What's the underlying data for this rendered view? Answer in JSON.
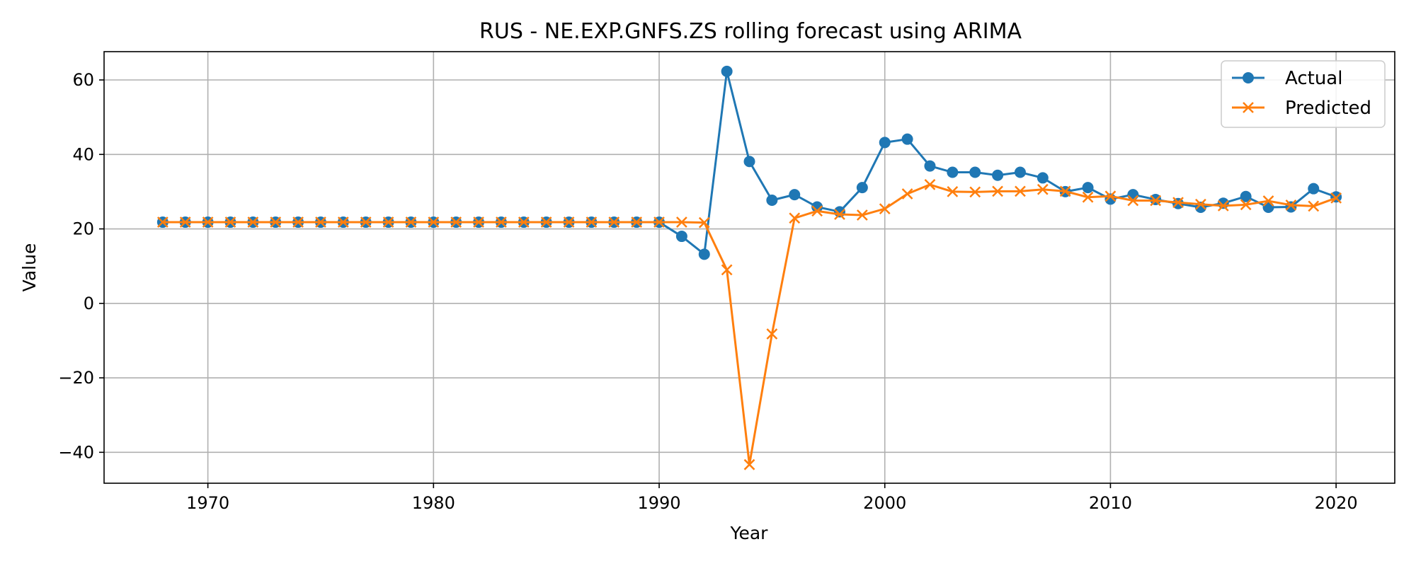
{
  "chart_data": {
    "type": "line",
    "title": "RUS - NE.EXP.GNFS.ZS rolling forecast using ARIMA",
    "xlabel": "Year",
    "ylabel": "Value",
    "xlim": [
      1965.4,
      2022.6
    ],
    "ylim": [
      -48.3,
      67.6
    ],
    "xticks": [
      1970,
      1980,
      1990,
      2000,
      2010,
      2020
    ],
    "yticks": [
      -40,
      -20,
      0,
      20,
      40,
      60
    ],
    "ytick_labels": [
      "−40",
      "−20",
      "0",
      "20",
      "40",
      "60"
    ],
    "grid": true,
    "legend": "top-right",
    "x": [
      1968,
      1969,
      1970,
      1971,
      1972,
      1973,
      1974,
      1975,
      1976,
      1977,
      1978,
      1979,
      1980,
      1981,
      1982,
      1983,
      1984,
      1985,
      1986,
      1987,
      1988,
      1989,
      1990,
      1991,
      1992,
      1993,
      1994,
      1995,
      1996,
      1997,
      1998,
      1999,
      2000,
      2001,
      2002,
      2003,
      2004,
      2005,
      2006,
      2007,
      2008,
      2009,
      2010,
      2011,
      2012,
      2013,
      2014,
      2015,
      2016,
      2017,
      2018,
      2019,
      2020
    ],
    "series": [
      {
        "name": "Actual",
        "color": "#1f77b4",
        "marker": "circle",
        "values": [
          21.8,
          21.8,
          21.8,
          21.8,
          21.8,
          21.8,
          21.8,
          21.8,
          21.8,
          21.8,
          21.8,
          21.8,
          21.8,
          21.8,
          21.8,
          21.8,
          21.8,
          21.8,
          21.8,
          21.8,
          21.8,
          21.8,
          21.8,
          18.0,
          13.2,
          62.3,
          38.1,
          27.7,
          29.2,
          25.9,
          24.6,
          31.1,
          43.2,
          44.1,
          36.9,
          35.2,
          35.2,
          34.4,
          35.2,
          33.7,
          30.0,
          31.1,
          28.0,
          29.2,
          27.9,
          26.8,
          25.8,
          26.9,
          28.7,
          25.8,
          25.9,
          30.8,
          28.6
        ]
      },
      {
        "name": "Predicted",
        "color": "#ff7f0e",
        "marker": "x",
        "values": [
          21.8,
          21.8,
          21.8,
          21.8,
          21.8,
          21.8,
          21.8,
          21.8,
          21.8,
          21.8,
          21.8,
          21.8,
          21.8,
          21.8,
          21.8,
          21.8,
          21.8,
          21.8,
          21.8,
          21.8,
          21.8,
          21.8,
          21.8,
          21.8,
          21.7,
          9.0,
          -43.3,
          -8.2,
          22.9,
          24.8,
          23.9,
          23.7,
          25.4,
          29.4,
          31.9,
          30.0,
          29.9,
          30.1,
          30.1,
          30.6,
          30.1,
          28.5,
          28.8,
          27.6,
          27.6,
          27.1,
          26.6,
          26.2,
          26.5,
          27.5,
          26.4,
          26.1,
          28.3
        ]
      }
    ]
  }
}
